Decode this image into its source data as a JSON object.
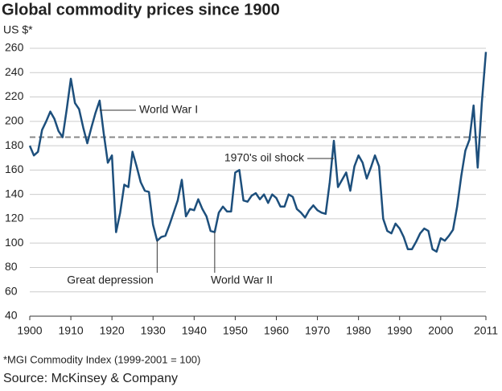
{
  "chart_data": {
    "type": "line",
    "title": "Global commodity prices since 1900",
    "subtitle": "US $*",
    "footnote": "*MGI Commodity Index (1999-2001 = 100)",
    "source": "Source: McKinsey & Company",
    "x": [
      1900,
      1901,
      1902,
      1903,
      1904,
      1905,
      1906,
      1907,
      1908,
      1909,
      1910,
      1911,
      1912,
      1913,
      1914,
      1915,
      1916,
      1917,
      1918,
      1919,
      1920,
      1921,
      1922,
      1923,
      1924,
      1925,
      1926,
      1927,
      1928,
      1929,
      1930,
      1931,
      1932,
      1933,
      1934,
      1935,
      1936,
      1937,
      1938,
      1939,
      1940,
      1941,
      1942,
      1943,
      1944,
      1945,
      1946,
      1947,
      1948,
      1949,
      1950,
      1951,
      1952,
      1953,
      1954,
      1955,
      1956,
      1957,
      1958,
      1959,
      1960,
      1961,
      1962,
      1963,
      1964,
      1965,
      1966,
      1967,
      1968,
      1969,
      1970,
      1971,
      1972,
      1973,
      1974,
      1975,
      1976,
      1977,
      1978,
      1979,
      1980,
      1981,
      1982,
      1983,
      1984,
      1985,
      1986,
      1987,
      1988,
      1989,
      1990,
      1991,
      1992,
      1993,
      1994,
      1995,
      1996,
      1997,
      1998,
      1999,
      2000,
      2001,
      2002,
      2003,
      2004,
      2005,
      2006,
      2007,
      2008,
      2009,
      2010,
      2011
    ],
    "series": [
      {
        "name": "MGI Commodity Index",
        "color": "#1d4f7c",
        "values": [
          180,
          172,
          175,
          193,
          200,
          208,
          202,
          192,
          187,
          210,
          235,
          215,
          210,
          195,
          182,
          195,
          207,
          217,
          190,
          166,
          172,
          109,
          125,
          148,
          146,
          175,
          163,
          150,
          143,
          142,
          115,
          102,
          105,
          106,
          115,
          125,
          135,
          152,
          122,
          128,
          127,
          136,
          128,
          122,
          110,
          109,
          125,
          130,
          126,
          126,
          158,
          160,
          135,
          134,
          139,
          141,
          136,
          140,
          133,
          140,
          137,
          130,
          130,
          140,
          138,
          128,
          125,
          121,
          127,
          131,
          127,
          125,
          124,
          150,
          184,
          146,
          152,
          158,
          143,
          163,
          172,
          166,
          153,
          162,
          172,
          163,
          120,
          110,
          108,
          116,
          112,
          105,
          95,
          95,
          101,
          108,
          112,
          110,
          95,
          93,
          104,
          102,
          106,
          111,
          130,
          155,
          176,
          185,
          213,
          162,
          215,
          257
        ]
      }
    ],
    "xlim": [
      1900,
      2011
    ],
    "xticks": [
      1900,
      1910,
      1920,
      1930,
      1940,
      1950,
      1960,
      1970,
      1980,
      1990,
      2000,
      2011
    ],
    "ylim": [
      40,
      260
    ],
    "yticks": [
      40,
      60,
      80,
      100,
      120,
      140,
      160,
      180,
      200,
      220,
      240,
      260
    ],
    "grid": true,
    "reference_line": 187,
    "annotations": [
      {
        "label": "World War I",
        "x": 1917,
        "y": 217
      },
      {
        "label": "Great depression",
        "x": 1931,
        "y": 102
      },
      {
        "label": "World War II",
        "x": 1945,
        "y": 109
      },
      {
        "label": "1970's oil shock",
        "x": 1974,
        "y": 184
      }
    ]
  }
}
